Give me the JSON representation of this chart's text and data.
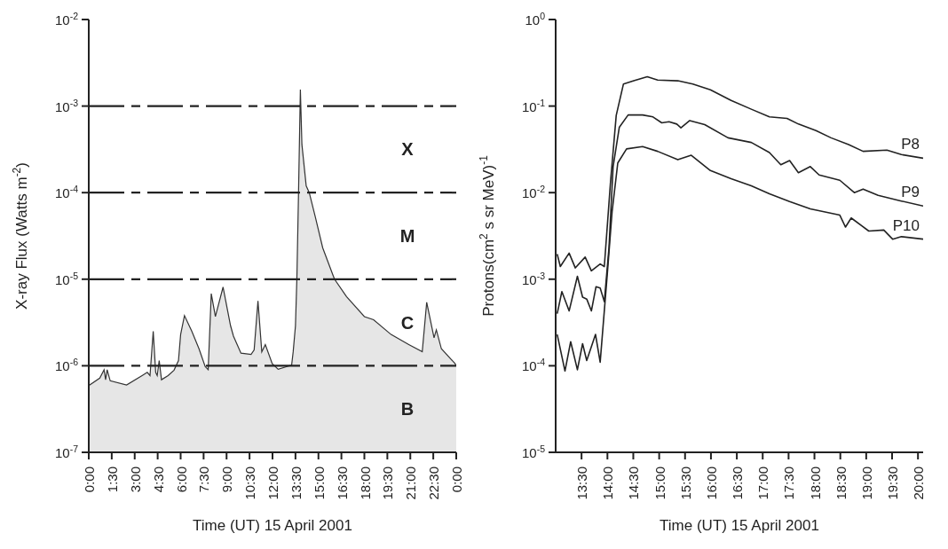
{
  "chart_data": [
    {
      "type": "area",
      "xlabel": "Time (UT) 15 April  2001",
      "ylabel": "X-ray Flux (Watts m$^{-2}$)",
      "log": "y",
      "xlim": [
        0,
        24
      ],
      "xticks": [
        {
          "value": 0,
          "label": "0:00"
        },
        {
          "value": 1.5,
          "label": "1:30"
        },
        {
          "value": 3,
          "label": "3:00"
        },
        {
          "value": 4.5,
          "label": "4:30"
        },
        {
          "value": 6,
          "label": "6:00"
        },
        {
          "value": 7.5,
          "label": "7:30"
        },
        {
          "value": 9,
          "label": "9:00"
        },
        {
          "value": 10.5,
          "label": "10:30"
        },
        {
          "value": 12,
          "label": "12:00"
        },
        {
          "value": 13.5,
          "label": "13:30"
        },
        {
          "value": 15,
          "label": "15:00"
        },
        {
          "value": 16.5,
          "label": "16:30"
        },
        {
          "value": 18,
          "label": "18:00"
        },
        {
          "value": 19.5,
          "label": "19:30"
        },
        {
          "value": 21,
          "label": "21:00"
        },
        {
          "value": 22.5,
          "label": "22:30"
        },
        {
          "value": 24,
          "label": "0:00"
        }
      ],
      "ylim": [
        1e-07,
        0.01
      ],
      "yticks": [
        {
          "value": 1e-07,
          "label": "10$^{-7}$"
        },
        {
          "value": 1e-06,
          "label": "10$^{-6}$"
        },
        {
          "value": 1e-05,
          "label": "10$^{-5}$"
        },
        {
          "value": 0.0001,
          "label": "10$^{-4}$"
        },
        {
          "value": 0.001,
          "label": "10$^{-3}$"
        },
        {
          "value": 0.01,
          "label": "10$^{-2}$"
        }
      ],
      "series": [
        {
          "color": "#333333",
          "x": [
            0,
            0.72,
            1.0,
            1.1,
            1.2,
            1.4,
            2.47,
            3.53,
            3.82,
            4.0,
            4.21,
            4.37,
            4.47,
            4.6,
            4.75,
            5.18,
            5.57,
            5.86,
            6.0,
            6.25,
            6.73,
            7.2,
            7.6,
            7.8,
            8.0,
            8.27,
            8.77,
            9.26,
            9.45,
            9.94,
            10.6,
            10.8,
            11.05,
            11.3,
            11.53,
            11.98,
            12.37,
            12.95,
            13.25,
            13.35,
            13.5,
            13.59,
            13.6,
            13.7,
            13.82,
            13.92,
            14.2,
            14.4,
            14.8,
            15.28,
            15.96,
            16.05,
            16.83,
            18.0,
            18.6,
            19.74,
            20.9,
            21.78,
            22.07,
            22.55,
            22.7,
            23.03,
            23.92,
            24
          ],
          "values": [
            5.9e-07,
            7.2e-07,
            9e-07,
            6.9e-07,
            9e-07,
            6.7e-07,
            6e-07,
            7.8e-07,
            8.4e-07,
            7.7e-07,
            2.5e-06,
            8.4e-07,
            7.7e-07,
            1.15e-06,
            6.9e-07,
            7.7e-07,
            8.9e-07,
            1.15e-06,
            2.3e-06,
            3.8e-06,
            2.5e-06,
            1.57e-06,
            9.8e-07,
            9e-07,
            6.8e-06,
            3.7e-06,
            8.1e-06,
            2.9e-06,
            2.2e-06,
            1.4e-06,
            1.35e-06,
            1.52e-06,
            5.6e-06,
            1.45e-06,
            1.76e-06,
            1.06e-06,
            9.1e-07,
            9.8e-07,
            1.02e-06,
            1.45e-06,
            2.9e-06,
            1e-05,
            1.2e-05,
            0.0001,
            0.00155,
            0.00036,
            0.00012,
            0.0001,
            5.2e-05,
            2.3e-05,
            1.1e-05,
            1e-05,
            6.3e-06,
            3.7e-06,
            3.4e-06,
            2.3e-06,
            1.76e-06,
            1.45e-06,
            5.4e-06,
            2.1e-06,
            2.6e-06,
            1.57e-06,
            1.06e-06,
            1e-06
          ]
        }
      ],
      "ref_lines": [
        {
          "axis": "y",
          "value": 0.001,
          "line_style": "dashed",
          "color": "#222222"
        },
        {
          "axis": "y",
          "value": 0.0001,
          "line_style": "dashed",
          "color": "#222222"
        },
        {
          "axis": "y",
          "value": 1e-05,
          "line_style": "dashed",
          "color": "#222222"
        },
        {
          "axis": "y",
          "value": 1e-06,
          "line_style": "dashed",
          "color": "#222222"
        }
      ],
      "annotations": [
        "X",
        "M",
        "C",
        "B"
      ]
    },
    {
      "type": "line",
      "xlabel": "Time (UT) 15 April  2001",
      "ylabel": "Protons(cm$^{2}$ s sr MeV)$^{-1}$",
      "log": "y",
      "xlim": [
        13,
        20.1
      ],
      "xticks": [
        {
          "value": 13.5,
          "label": "13:30"
        },
        {
          "value": 14,
          "label": "14:00"
        },
        {
          "value": 14.5,
          "label": "14:30"
        },
        {
          "value": 15,
          "label": "15:00"
        },
        {
          "value": 15.5,
          "label": "15:30"
        },
        {
          "value": 16,
          "label": "16:00"
        },
        {
          "value": 16.5,
          "label": "16:30"
        },
        {
          "value": 17,
          "label": "17:00"
        },
        {
          "value": 17.5,
          "label": "17:30"
        },
        {
          "value": 18,
          "label": "18:00"
        },
        {
          "value": 18.5,
          "label": "18:30"
        },
        {
          "value": 19,
          "label": "19:00"
        },
        {
          "value": 19.5,
          "label": "19:30"
        },
        {
          "value": 20,
          "label": "20:00"
        }
      ],
      "ylim": [
        1e-05,
        1
      ],
      "yticks": [
        {
          "value": 1e-05,
          "label": "10$^{-5}$"
        },
        {
          "value": 0.0001,
          "label": "10$^{-4}$"
        },
        {
          "value": 0.001,
          "label": "10$^{-3}$"
        },
        {
          "value": 0.01,
          "label": "10$^{-2}$"
        },
        {
          "value": 0.1,
          "label": "10$^{-1}$"
        },
        {
          "value": 1,
          "label": "10$^{0}$"
        }
      ],
      "series": [
        {
          "name": "P8",
          "color": "#222222",
          "x": [
            13.03,
            13.09,
            13.26,
            13.38,
            13.57,
            13.69,
            13.86,
            13.94,
            14.06,
            14.17,
            14.31,
            14.51,
            14.77,
            14.97,
            15.36,
            15.65,
            15.99,
            16.39,
            16.78,
            17.13,
            17.47,
            17.69,
            18.03,
            18.32,
            18.66,
            18.94,
            19.4,
            19.68,
            20.1
          ],
          "values": [
            0.00195,
            0.0014,
            0.002,
            0.00135,
            0.0018,
            0.00125,
            0.0015,
            0.0014,
            0.0133,
            0.078,
            0.18,
            0.196,
            0.218,
            0.2,
            0.196,
            0.18,
            0.154,
            0.116,
            0.092,
            0.075,
            0.072,
            0.062,
            0.052,
            0.043,
            0.036,
            0.03,
            0.031,
            0.0275,
            0.025
          ]
        },
        {
          "name": "P9",
          "color": "#222222",
          "x": [
            13.03,
            13.12,
            13.26,
            13.42,
            13.52,
            13.6,
            13.69,
            13.78,
            13.86,
            13.94,
            14.03,
            14.11,
            14.23,
            14.4,
            14.68,
            14.88,
            15.05,
            15.19,
            15.34,
            15.42,
            15.59,
            15.88,
            16.33,
            16.78,
            17.13,
            17.35,
            17.52,
            17.69,
            17.92,
            18.09,
            18.49,
            18.77,
            18.94,
            19.23,
            19.68,
            20.1
          ],
          "values": [
            0.0004,
            0.00072,
            0.00043,
            0.00108,
            0.00062,
            0.00059,
            0.00043,
            0.00082,
            0.00079,
            0.00055,
            0.0023,
            0.02,
            0.057,
            0.079,
            0.079,
            0.075,
            0.064,
            0.066,
            0.062,
            0.056,
            0.068,
            0.061,
            0.043,
            0.038,
            0.029,
            0.021,
            0.0235,
            0.017,
            0.02,
            0.016,
            0.0139,
            0.01,
            0.011,
            0.0093,
            0.008,
            0.007
          ]
        },
        {
          "name": "P10",
          "color": "#222222",
          "x": [
            13.03,
            13.18,
            13.29,
            13.42,
            13.52,
            13.6,
            13.77,
            13.86,
            14.0,
            14.09,
            14.2,
            14.37,
            14.68,
            14.97,
            15.36,
            15.62,
            15.99,
            16.39,
            16.78,
            17.13,
            17.52,
            17.92,
            18.49,
            18.6,
            18.71,
            19.05,
            19.34,
            19.51,
            19.68,
            20.1
          ],
          "values": [
            0.00023,
            8.7e-05,
            0.00019,
            9e-05,
            0.00018,
            0.000115,
            0.00023,
            0.00011,
            0.0012,
            0.006,
            0.022,
            0.032,
            0.034,
            0.03,
            0.024,
            0.027,
            0.018,
            0.0145,
            0.012,
            0.0097,
            0.0079,
            0.0065,
            0.0055,
            0.004,
            0.0051,
            0.0036,
            0.0037,
            0.0029,
            0.0031,
            0.0029
          ]
        }
      ]
    }
  ]
}
